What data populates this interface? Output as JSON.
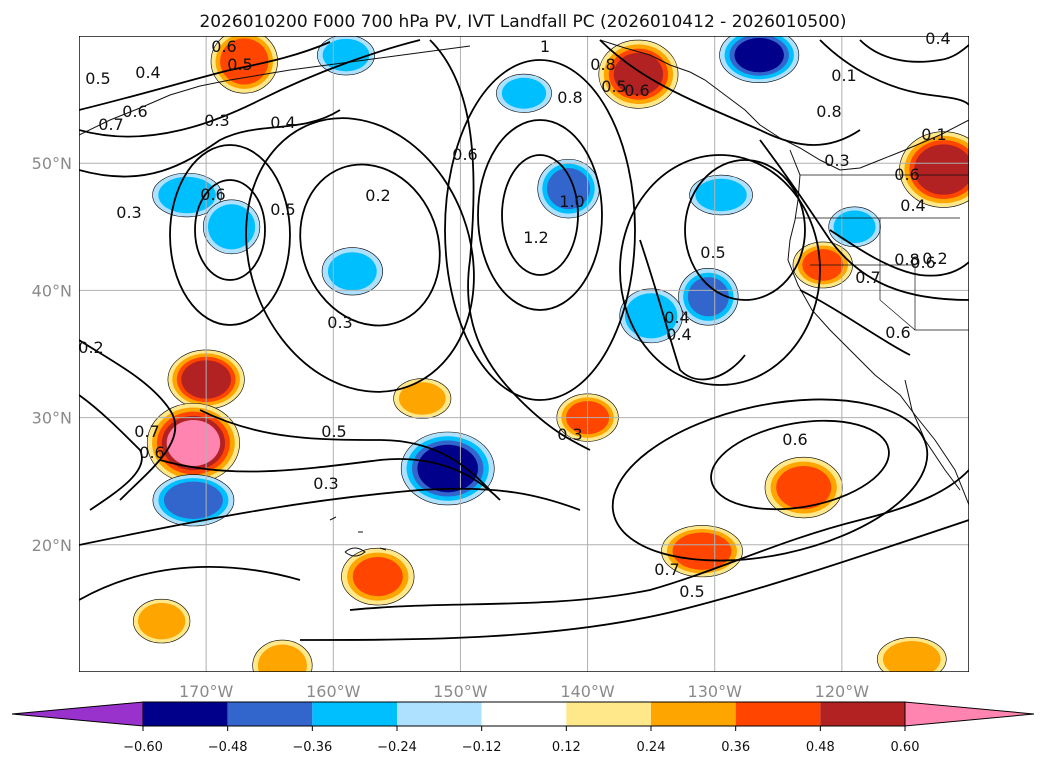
{
  "chart_data": {
    "type": "contour-map",
    "title": "2026010200 F000 700 hPa PV, IVT Landfall PC (2026010412 - 2026010500)",
    "lat_ticks": [
      "20°N",
      "30°N",
      "40°N",
      "50°N"
    ],
    "lon_ticks": [
      "170°W",
      "160°W",
      "150°W",
      "140°W",
      "130°W",
      "120°W"
    ],
    "lon_range": [
      -180,
      -110
    ],
    "lat_range": [
      10,
      60
    ],
    "colorbar": {
      "ticks": [
        "−0.60",
        "−0.48",
        "−0.36",
        "−0.24",
        "−0.12",
        "0.12",
        "0.24",
        "0.36",
        "0.48",
        "0.60"
      ],
      "colors": [
        "#9932cc",
        "#00008b",
        "#3366cc",
        "#00bfff",
        "#aee0ff",
        "#ffffff",
        "#ffe88a",
        "#ffa500",
        "#ff4500",
        "#b22222",
        "#ff85b0"
      ]
    },
    "contour_labels": [
      "0.6",
      "0.5",
      "0.4",
      "0.5",
      "0.3",
      "0.4",
      "0.7",
      "0.6",
      "0.3",
      "0.6",
      "0.5",
      "0.2",
      "0.3",
      "0.3",
      "0.7",
      "0.6",
      "0.5",
      "0.3",
      "1",
      "0.8",
      "0.6",
      "1.0",
      "1.2",
      "0.6",
      "0.8",
      "0.5",
      "0.4",
      "0.6",
      "0.8",
      "0.7",
      "0.4",
      "0.6",
      "0.5",
      "0.7",
      "0.3",
      "0.4",
      "0.2",
      "0.8",
      "0.6",
      "0.1",
      "0.5",
      "0.1",
      "0.4",
      "0.6",
      "0.2"
    ],
    "anomaly_blobs": [
      {
        "lon": -170.0,
        "lat": 33.0,
        "value": 0.55
      },
      {
        "lon": -171.0,
        "lat": 28.0,
        "value": 0.62
      },
      {
        "lon": -171.0,
        "lat": 23.5,
        "value": -0.45
      },
      {
        "lon": -167.0,
        "lat": 58.0,
        "value": 0.45
      },
      {
        "lon": -159.0,
        "lat": 58.5,
        "value": -0.3
      },
      {
        "lon": -151.0,
        "lat": 26.0,
        "value": -0.55
      },
      {
        "lon": -140.0,
        "lat": 30.0,
        "value": 0.4
      },
      {
        "lon": -136.0,
        "lat": 57.0,
        "value": 0.5
      },
      {
        "lon": -131.0,
        "lat": 19.5,
        "value": 0.45
      },
      {
        "lon": -130.5,
        "lat": 39.5,
        "value": -0.38
      },
      {
        "lon": -126.5,
        "lat": 58.5,
        "value": -0.5
      },
      {
        "lon": -123.0,
        "lat": 24.5,
        "value": 0.42
      },
      {
        "lon": -121.5,
        "lat": 42.0,
        "value": 0.38
      },
      {
        "lon": -112.0,
        "lat": 49.5,
        "value": 0.58
      },
      {
        "lon": -171.5,
        "lat": 47.5,
        "value": -0.35
      },
      {
        "lon": -168.0,
        "lat": 45.0,
        "value": -0.35
      },
      {
        "lon": -153.0,
        "lat": 31.5,
        "value": 0.3
      },
      {
        "lon": -156.5,
        "lat": 17.5,
        "value": 0.38
      },
      {
        "lon": -173.5,
        "lat": 14.0,
        "value": 0.35
      },
      {
        "lon": -164.0,
        "lat": 10.5,
        "value": 0.32
      },
      {
        "lon": -114.5,
        "lat": 11.0,
        "value": 0.35
      },
      {
        "lon": -141.5,
        "lat": 48.0,
        "value": -0.4
      },
      {
        "lon": -145.0,
        "lat": 55.5,
        "value": -0.28
      },
      {
        "lon": -158.5,
        "lat": 41.5,
        "value": -0.28
      },
      {
        "lon": -119.0,
        "lat": 45.0,
        "value": -0.3
      },
      {
        "lon": -135.0,
        "lat": 38.0,
        "value": -0.35
      },
      {
        "lon": -129.5,
        "lat": 47.5,
        "value": -0.3
      }
    ]
  }
}
